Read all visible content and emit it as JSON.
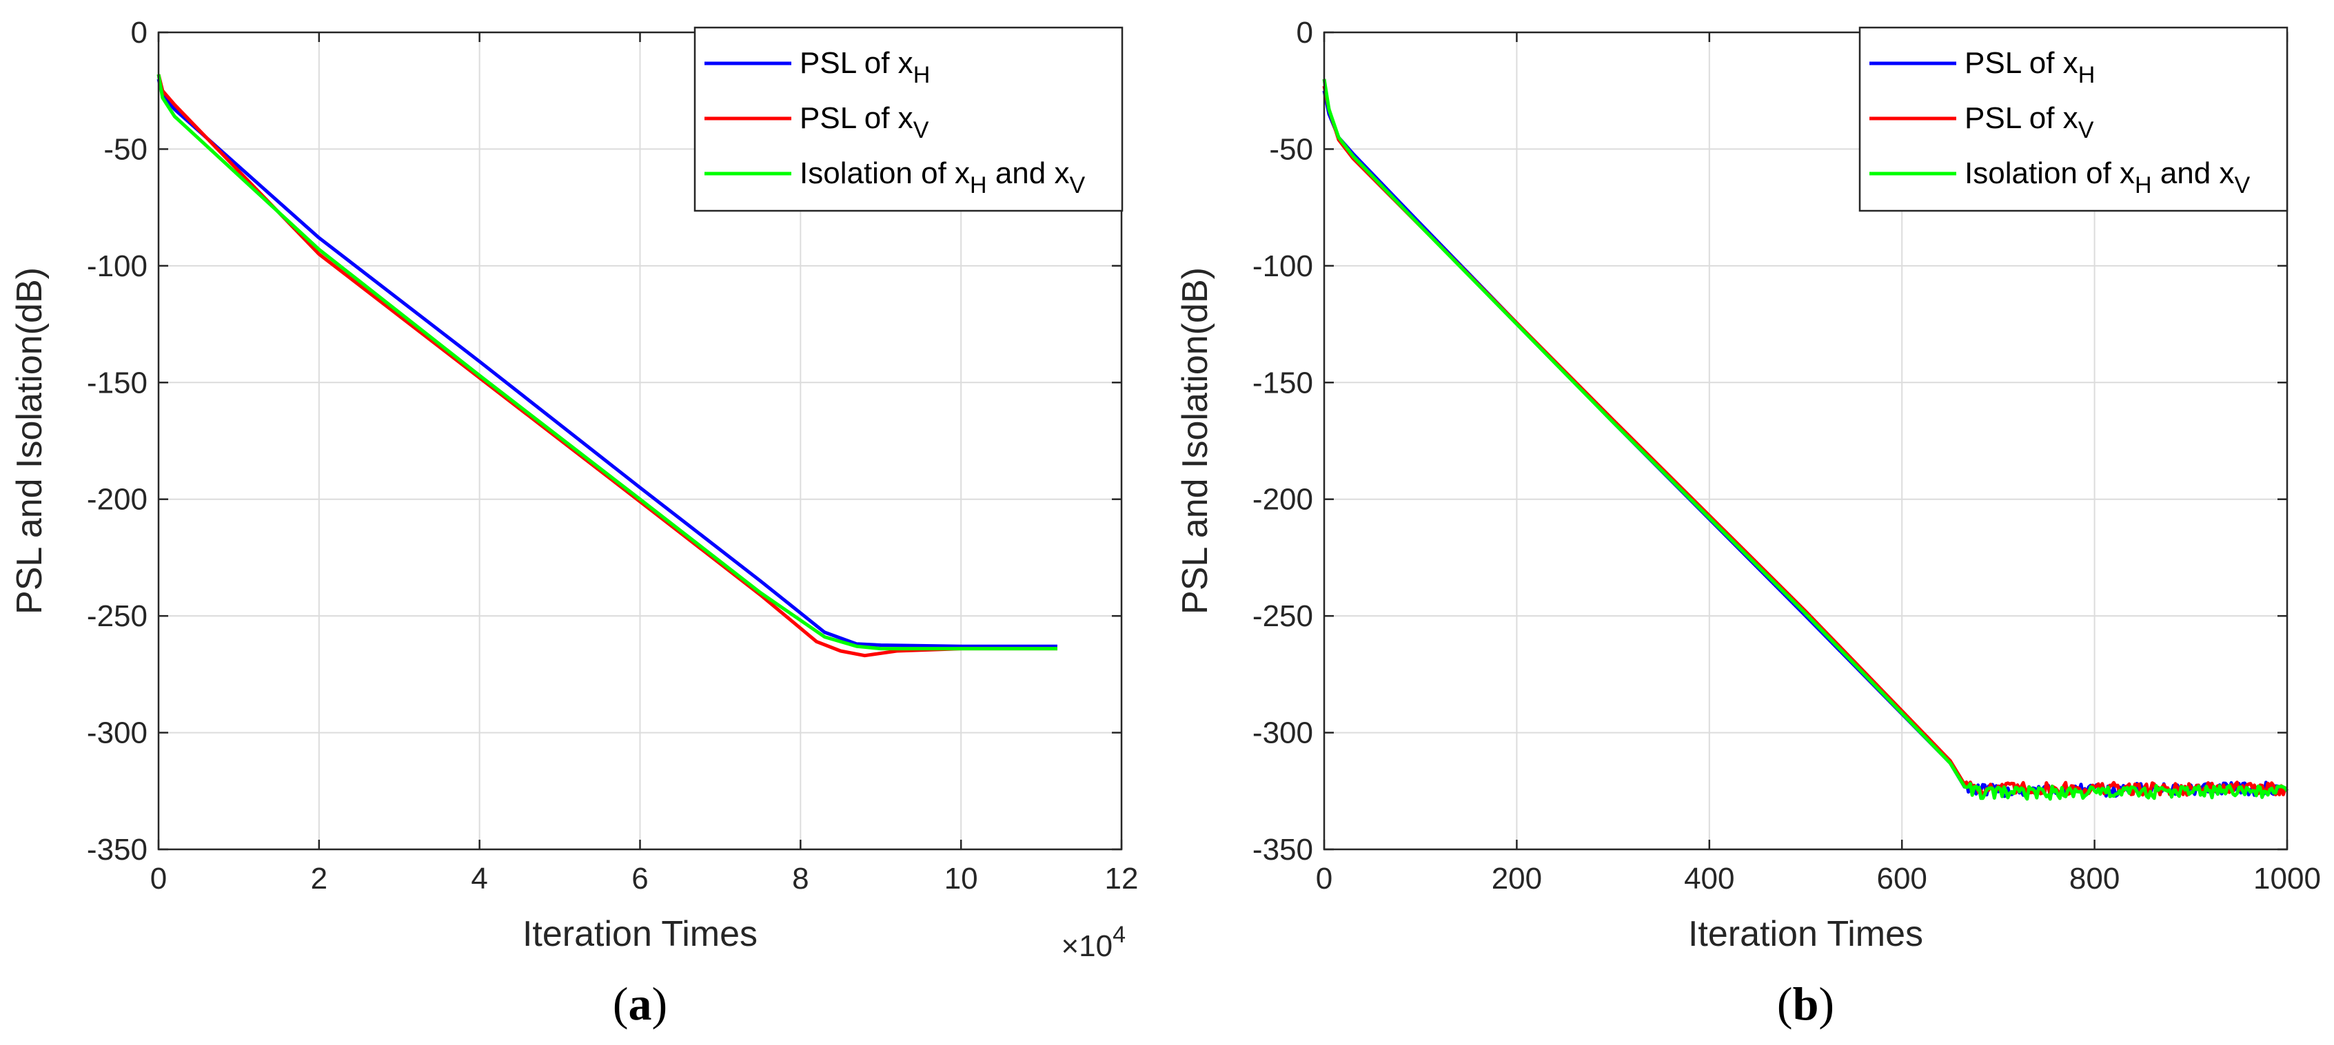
{
  "chart_data": [
    {
      "type": "line",
      "panel_label": "a",
      "xlabel": "Iteration Times",
      "ylabel": "PSL and Isolation(dB)",
      "x_multiplier_base": "×10",
      "x_multiplier_exp": "4",
      "xlim": [
        0,
        12
      ],
      "ylim": [
        -350,
        0
      ],
      "xticks": [
        0,
        2,
        4,
        6,
        8,
        10,
        12
      ],
      "yticks": [
        0,
        -50,
        -100,
        -150,
        -200,
        -250,
        -300,
        -350
      ],
      "grid": true,
      "legend_position": "top-right",
      "series": [
        {
          "name": "PSL of x_H",
          "legend_main": "PSL of x",
          "legend_sub": "H",
          "legend_tail": "",
          "color": "#0000ff",
          "x": [
            0,
            0.05,
            0.2,
            2,
            4,
            6,
            7.5,
            8.3,
            8.7,
            9,
            10,
            11.2
          ],
          "y": [
            -20,
            -27,
            -33,
            -88,
            -141,
            -195,
            -235,
            -257,
            -262,
            -262.5,
            -263,
            -263
          ]
        },
        {
          "name": "PSL of x_V",
          "legend_main": "PSL of x",
          "legend_sub": "V",
          "legend_tail": "",
          "color": "#ff0000",
          "x": [
            0,
            0.05,
            0.2,
            2,
            4,
            6,
            7.5,
            8.2,
            8.5,
            8.8,
            9.2,
            10,
            11.2
          ],
          "y": [
            -18,
            -25,
            -31,
            -95,
            -148,
            -201,
            -241,
            -261,
            -265,
            -267,
            -265,
            -264,
            -264
          ]
        },
        {
          "name": "Isolation of x_H and x_V",
          "legend_main": "Isolation of x",
          "legend_sub": "H",
          "legend_tail": " and x",
          "legend_sub2": "V",
          "color": "#00ff00",
          "x": [
            0,
            0.05,
            0.2,
            2,
            4,
            6,
            7.5,
            8.3,
            8.7,
            9,
            10,
            11.2
          ],
          "y": [
            -18,
            -28,
            -36,
            -93,
            -147,
            -200,
            -240,
            -259,
            -263,
            -264,
            -264,
            -264
          ]
        }
      ]
    },
    {
      "type": "line",
      "panel_label": "b",
      "xlabel": "Iteration Times",
      "ylabel": "PSL and Isolation(dB)",
      "xlim": [
        0,
        1000
      ],
      "ylim": [
        -350,
        0
      ],
      "xticks": [
        0,
        200,
        400,
        600,
        800,
        1000
      ],
      "yticks": [
        0,
        -50,
        -100,
        -150,
        -200,
        -250,
        -300,
        -350
      ],
      "grid": true,
      "legend_position": "top-right",
      "noise_start": 665,
      "series": [
        {
          "name": "PSL of x_H",
          "legend_main": "PSL of x",
          "legend_sub": "H",
          "legend_tail": "",
          "color": "#0000ff",
          "x": [
            0,
            5,
            15,
            30,
            100,
            300,
            500,
            650,
            665,
            680,
            1000
          ],
          "y": [
            -25,
            -35,
            -45,
            -52,
            -82,
            -167,
            -250,
            -313,
            -322,
            -325,
            -324
          ]
        },
        {
          "name": "PSL of x_V",
          "legend_main": "PSL of x",
          "legend_sub": "V",
          "legend_tail": "",
          "color": "#ff0000",
          "x": [
            0,
            5,
            15,
            30,
            100,
            300,
            500,
            650,
            665,
            680,
            1000
          ],
          "y": [
            -23,
            -33,
            -46,
            -54,
            -83,
            -166,
            -248,
            -312,
            -321,
            -324,
            -324
          ]
        },
        {
          "name": "Isolation of x_H and x_V",
          "legend_main": "Isolation of x",
          "legend_sub": "H",
          "legend_tail": " and x",
          "legend_sub2": "V",
          "color": "#00ff00",
          "x": [
            0,
            5,
            15,
            30,
            100,
            300,
            500,
            650,
            665,
            680,
            1000
          ],
          "y": [
            -20,
            -33,
            -45,
            -53,
            -83,
            -167,
            -249,
            -313,
            -322,
            -326,
            -325
          ]
        }
      ]
    }
  ]
}
